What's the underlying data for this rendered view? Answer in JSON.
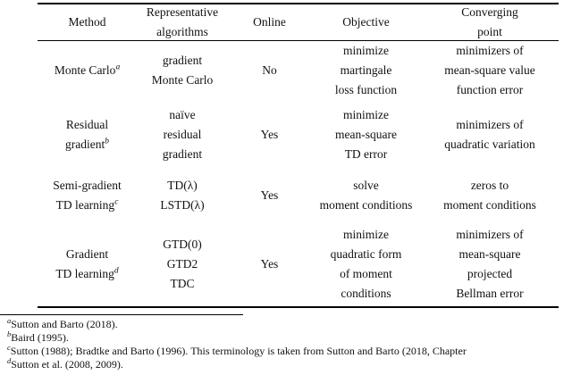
{
  "table": {
    "headers": {
      "method": "Method",
      "algorithms": "Representative\nalgorithms",
      "online": "Online",
      "objective": "Objective",
      "converging": "Converging\npoint"
    },
    "rows": [
      {
        "method": "Monte Carlo",
        "note": "a",
        "algorithms": "gradient\nMonte Carlo",
        "online": "No",
        "objective": "minimize\nmartingale\nloss function",
        "converging": "minimizers of\nmean-square value\nfunction error"
      },
      {
        "method": "Residual\ngradient",
        "note": "b",
        "algorithms": "naïve\nresidual\ngradient",
        "online": "Yes",
        "objective": "minimize\nmean-square\nTD error",
        "converging": "minimizers of\nquadratic variation"
      },
      {
        "method": "Semi-gradient\nTD learning",
        "note": "c",
        "algorithms": "TD(λ)\nLSTD(λ)",
        "online": "Yes",
        "objective": "solve\nmoment conditions",
        "converging": "zeros to\nmoment conditions"
      },
      {
        "method": "Gradient\nTD learning",
        "note": "d",
        "algorithms": "GTD(0)\nGTD2\nTDC",
        "online": "Yes",
        "objective": "minimize\nquadratic form\nof moment\nconditions",
        "converging": "minimizers of\nmean-square\nprojected\nBellman error"
      }
    ]
  },
  "footnotes": [
    {
      "marker": "a",
      "text": "Sutton and Barto (2018)."
    },
    {
      "marker": "b",
      "text": "Baird (1995)."
    },
    {
      "marker": "c",
      "text": "Sutton (1988); Bradtke and Barto (1996). This terminology is taken from Sutton and Barto (2018, Chapter"
    },
    {
      "marker": "d",
      "text": "Sutton et al. (2008, 2009)."
    }
  ]
}
